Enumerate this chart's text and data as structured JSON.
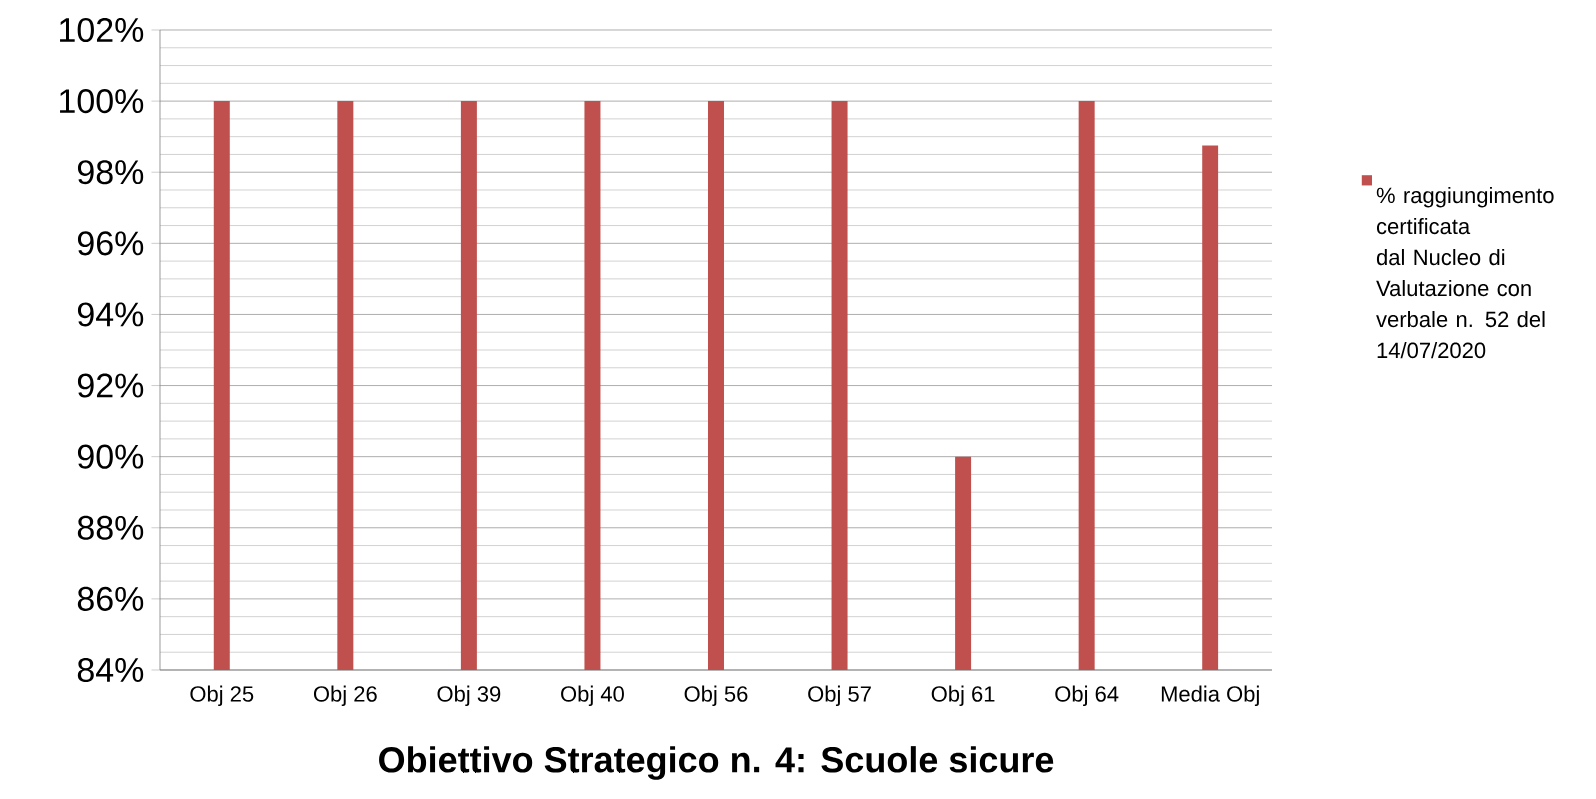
{
  "chart_data": {
    "type": "bar",
    "title": "Obiettivo Strategico n. 4: Scuole sicure",
    "categories": [
      "Obj 25",
      "Obj 26",
      "Obj 39",
      "Obj 40",
      "Obj 56",
      "Obj 57",
      "Obj 61",
      "Obj 64",
      "Media Obj"
    ],
    "series": [
      {
        "name": "% raggiungimento certificata dal Nucleo di Valutazione con verbale n. 52 del 14/07/2020",
        "color": "#c0504d",
        "values": [
          100,
          100,
          100,
          100,
          100,
          100,
          90,
          100,
          98.75
        ]
      }
    ],
    "ylim": [
      84,
      102
    ],
    "yticks": [
      {
        "value": 84,
        "label": "84%"
      },
      {
        "value": 86,
        "label": "86%"
      },
      {
        "value": 88,
        "label": "88%"
      },
      {
        "value": 90,
        "label": "90%"
      },
      {
        "value": 92,
        "label": "92%"
      },
      {
        "value": 94,
        "label": "94%"
      },
      {
        "value": 96,
        "label": "96%"
      },
      {
        "value": 98,
        "label": "98%"
      },
      {
        "value": 100,
        "label": "100%"
      },
      {
        "value": 102,
        "label": "102%"
      }
    ],
    "grid": "y",
    "legend": "right"
  }
}
